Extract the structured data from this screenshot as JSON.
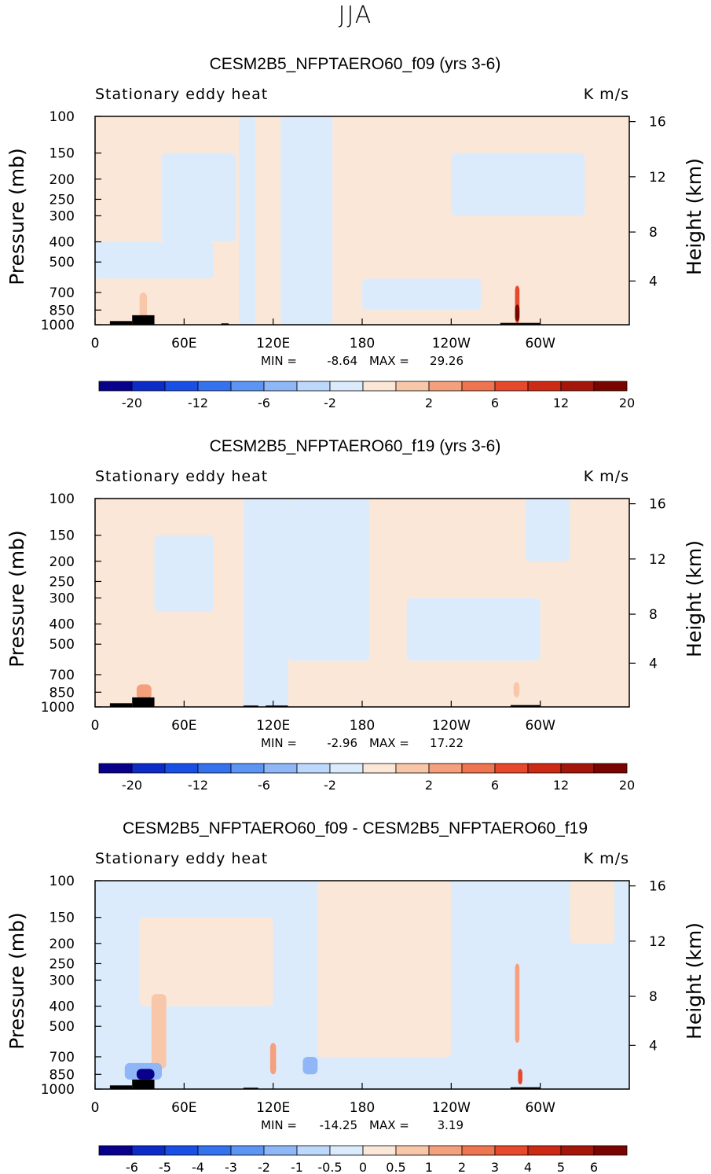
{
  "figure": {
    "suptitle": "JJA"
  },
  "colormaps": {
    "abs": [
      "#08008a",
      "#0d2bc7",
      "#1a4fe5",
      "#3572ee",
      "#5c95f3",
      "#8fb7f7",
      "#bcd8fb",
      "#dcebfc",
      "#fbe7d8",
      "#f8c7aa",
      "#f4a07d",
      "#ef7551",
      "#e6492c",
      "#cc2a14",
      "#a5160a",
      "#7a0500"
    ],
    "diff": [
      "#08008a",
      "#0d2bc7",
      "#1a4fe5",
      "#3572ee",
      "#5c95f3",
      "#8fb7f7",
      "#bcd8fb",
      "#dcebfc",
      "#fbe7d8",
      "#f8c7aa",
      "#f4a07d",
      "#ef7551",
      "#e6492c",
      "#cc2a14",
      "#a5160a",
      "#7a0500"
    ]
  },
  "chart_data": [
    {
      "type": "heatmap",
      "title": "CESM2B5_NFPTAERO60_f09 (yrs 3-6)",
      "subtitle_left": "Stationary eddy heat",
      "subtitle_right": "K m/s",
      "ylabel": "Pressure (mb)",
      "ylabel_right": "Height (km)",
      "x_ticks": [
        "0",
        "60E",
        "120E",
        "180",
        "120W",
        "60W"
      ],
      "x_tick_values": [
        0,
        60,
        120,
        180,
        240,
        300
      ],
      "xlim": [
        0,
        360
      ],
      "y_ticks": [
        100,
        150,
        200,
        250,
        300,
        400,
        500,
        700,
        850,
        1000
      ],
      "ylim": [
        100,
        1000
      ],
      "y_right_ticks": [
        4,
        8,
        12,
        16
      ],
      "min_label": "MIN =",
      "min_value": "-8.64",
      "max_label": "MAX =",
      "max_value": "29.26",
      "colorbar_labels": [
        "-20",
        "-12",
        "-6",
        "-2",
        "2",
        "6",
        "12",
        "20"
      ],
      "colorbar_levels": [
        -20,
        -16,
        -12,
        -8,
        -6,
        -4,
        -2,
        0,
        2,
        4,
        6,
        8,
        12,
        16,
        20
      ],
      "field": {
        "background_value": 1,
        "features": [
          {
            "lon": [
              97,
              108
            ],
            "p": [
              100,
              1000
            ],
            "value": -1
          },
          {
            "lon": [
              125,
              160
            ],
            "p": [
              100,
              1000
            ],
            "value": -1
          },
          {
            "lon": [
              45,
              95
            ],
            "p": [
              150,
              400
            ],
            "value": -1
          },
          {
            "lon": [
              240,
              330
            ],
            "p": [
              150,
              300
            ],
            "value": -1
          },
          {
            "lon": [
              0,
              80
            ],
            "p": [
              400,
              600
            ],
            "value": -1
          },
          {
            "lon": [
              180,
              260
            ],
            "p": [
              600,
              850
            ],
            "value": -1
          },
          {
            "lon": [
              30,
              35
            ],
            "p": [
              700,
              950
            ],
            "value": 3
          },
          {
            "lon": [
              283,
              286
            ],
            "p": [
              650,
              980
            ],
            "value": 10
          },
          {
            "lon": [
              283,
              286
            ],
            "p": [
              800,
              960
            ],
            "value": 25
          }
        ],
        "topography": [
          {
            "lon": [
              10,
              25
            ],
            "p": 960
          },
          {
            "lon": [
              25,
              40
            ],
            "p": 900
          },
          {
            "lon": [
              85,
              90
            ],
            "p": 985
          },
          {
            "lon": [
              273,
              300
            ],
            "p": 980
          }
        ]
      }
    },
    {
      "type": "heatmap",
      "title": "CESM2B5_NFPTAERO60_f19 (yrs 3-6)",
      "subtitle_left": "Stationary eddy heat",
      "subtitle_right": "K m/s",
      "ylabel": "Pressure (mb)",
      "ylabel_right": "Height (km)",
      "x_ticks": [
        "0",
        "60E",
        "120E",
        "180",
        "120W",
        "60W"
      ],
      "x_tick_values": [
        0,
        60,
        120,
        180,
        240,
        300
      ],
      "xlim": [
        0,
        360
      ],
      "y_ticks": [
        100,
        150,
        200,
        250,
        300,
        400,
        500,
        700,
        850,
        1000
      ],
      "ylim": [
        100,
        1000
      ],
      "y_right_ticks": [
        4,
        8,
        12,
        16
      ],
      "min_label": "MIN =",
      "min_value": "-2.96",
      "max_label": "MAX =",
      "max_value": "17.22",
      "colorbar_labels": [
        "-20",
        "-12",
        "-6",
        "-2",
        "2",
        "6",
        "12",
        "20"
      ],
      "colorbar_levels": [
        -20,
        -16,
        -12,
        -8,
        -6,
        -4,
        -2,
        0,
        2,
        4,
        6,
        8,
        12,
        16,
        20
      ],
      "field": {
        "background_value": 1,
        "features": [
          {
            "lon": [
              100,
              130
            ],
            "p": [
              100,
              1000
            ],
            "value": -1
          },
          {
            "lon": [
              130,
              185
            ],
            "p": [
              100,
              600
            ],
            "value": -1
          },
          {
            "lon": [
              40,
              80
            ],
            "p": [
              150,
              350
            ],
            "value": -1
          },
          {
            "lon": [
              210,
              300
            ],
            "p": [
              300,
              600
            ],
            "value": -1
          },
          {
            "lon": [
              290,
              320
            ],
            "p": [
              100,
              200
            ],
            "value": -1
          },
          {
            "lon": [
              28,
              38
            ],
            "p": [
              780,
              920
            ],
            "value": 4
          },
          {
            "lon": [
              282,
              286
            ],
            "p": [
              760,
              900
            ],
            "value": 3
          }
        ],
        "topography": [
          {
            "lon": [
              10,
              25
            ],
            "p": 960
          },
          {
            "lon": [
              25,
              40
            ],
            "p": 900
          },
          {
            "lon": [
              100,
              110
            ],
            "p": 985
          },
          {
            "lon": [
              115,
              130
            ],
            "p": 985
          },
          {
            "lon": [
              280,
              300
            ],
            "p": 980
          }
        ]
      }
    },
    {
      "type": "heatmap",
      "title": "CESM2B5_NFPTAERO60_f09 - CESM2B5_NFPTAERO60_f19",
      "subtitle_left": "Stationary eddy heat",
      "subtitle_right": "K m/s",
      "ylabel": "Pressure (mb)",
      "ylabel_right": "Height (km)",
      "x_ticks": [
        "0",
        "60E",
        "120E",
        "180",
        "120W",
        "60W"
      ],
      "x_tick_values": [
        0,
        60,
        120,
        180,
        240,
        300
      ],
      "xlim": [
        0,
        360
      ],
      "y_ticks": [
        100,
        150,
        200,
        250,
        300,
        400,
        500,
        700,
        850,
        1000
      ],
      "ylim": [
        100,
        1000
      ],
      "y_right_ticks": [
        4,
        8,
        12,
        16
      ],
      "min_label": "MIN =",
      "min_value": "-14.25",
      "max_label": "MAX =",
      "max_value": "3.19",
      "colorbar_labels": [
        "-6",
        "-5",
        "-4",
        "-3",
        "-2",
        "-1",
        "-0.5",
        "0",
        "0.5",
        "1",
        "2",
        "3",
        "4",
        "5",
        "6"
      ],
      "colorbar_levels": [
        -6,
        -5,
        -4,
        -3,
        -2,
        -1,
        -0.5,
        0,
        0.5,
        1,
        2,
        3,
        4,
        5,
        6
      ],
      "field": {
        "background_value": -0.3,
        "features": [
          {
            "lon": [
              30,
              120
            ],
            "p": [
              150,
              400
            ],
            "value": 0.3
          },
          {
            "lon": [
              150,
              240
            ],
            "p": [
              100,
              700
            ],
            "value": 0.3
          },
          {
            "lon": [
              320,
              350
            ],
            "p": [
              100,
              200
            ],
            "value": 0.3
          },
          {
            "lon": [
              38,
              48
            ],
            "p": [
              350,
              800
            ],
            "value": 0.8
          },
          {
            "lon": [
              118,
              122
            ],
            "p": [
              600,
              850
            ],
            "value": 1.5
          },
          {
            "lon": [
              283,
              286
            ],
            "p": [
              250,
              600
            ],
            "value": 1.5
          },
          {
            "lon": [
              285,
              288
            ],
            "p": [
              800,
              950
            ],
            "value": 3
          },
          {
            "lon": [
              20,
              45
            ],
            "p": [
              750,
              900
            ],
            "value": -1.5
          },
          {
            "lon": [
              28,
              40
            ],
            "p": [
              800,
              900
            ],
            "value": -8
          },
          {
            "lon": [
              140,
              150
            ],
            "p": [
              700,
              850
            ],
            "value": -1.5
          }
        ],
        "topography": [
          {
            "lon": [
              10,
              25
            ],
            "p": 960
          },
          {
            "lon": [
              25,
              40
            ],
            "p": 900
          },
          {
            "lon": [
              100,
              110
            ],
            "p": 985
          },
          {
            "lon": [
              280,
              300
            ],
            "p": 980
          }
        ]
      }
    }
  ]
}
